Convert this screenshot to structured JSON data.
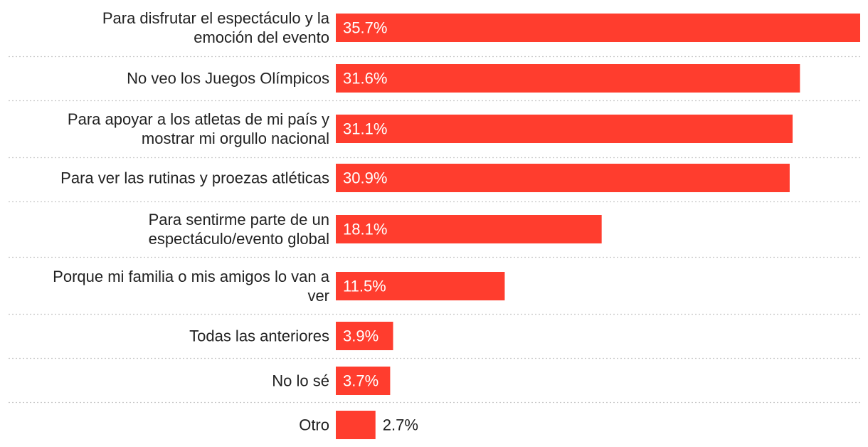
{
  "chart_data": {
    "type": "bar",
    "orientation": "horizontal",
    "title": "",
    "xlabel": "",
    "ylabel": "",
    "xlim": [
      0,
      35.7
    ],
    "grid": false,
    "value_suffix": "%",
    "bar_color": "#ff3d2e",
    "label_inside_color": "#ffffff",
    "label_outside_color": "#222222",
    "category_label_color": "#222222",
    "separator_color": "#c9c9c9",
    "categories": [
      [
        "Para disfrutar el espectáculo y la",
        "emoción del evento"
      ],
      [
        "No veo los Juegos Olímpicos"
      ],
      [
        "Para apoyar a los atletas de mi país y",
        "mostrar mi orgullo nacional"
      ],
      [
        "Para ver las rutinas y proezas atléticas"
      ],
      [
        "Para sentirme parte de un",
        "espectáculo/evento global"
      ],
      [
        "Porque mi familia o mis amigos lo van a",
        "ver"
      ],
      [
        "Todas las anteriores"
      ],
      [
        "No lo sé"
      ],
      [
        "Otro"
      ]
    ],
    "values": [
      35.7,
      31.6,
      31.1,
      30.9,
      18.1,
      11.5,
      3.9,
      3.7,
      2.7
    ],
    "value_labels": [
      "35.7%",
      "31.6%",
      "31.1%",
      "30.9%",
      "18.1%",
      "11.5%",
      "3.9%",
      "3.7%",
      "2.7%"
    ]
  }
}
